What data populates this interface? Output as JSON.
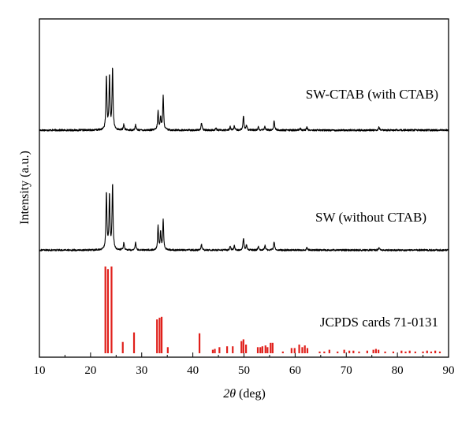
{
  "chart_data": {
    "type": "line",
    "xlabel_symbol": "2θ",
    "xlabel_unit": "(deg)",
    "ylabel": "Intensity (a.u.)",
    "xlim": [
      10,
      90
    ],
    "x_ticks": [
      "10",
      "20",
      "30",
      "40",
      "50",
      "60",
      "70",
      "80",
      "90"
    ],
    "grid": false,
    "colors": {
      "xrd_lines": "#000000",
      "reference_bars": "#e0201b",
      "axes": "#000000"
    },
    "series": [
      {
        "name": "SW-CTAB (with CTAB)",
        "style": "line",
        "baseline": 0.02,
        "noise": 0.012,
        "peaks": [
          [
            23.1,
            0.72
          ],
          [
            23.7,
            0.7
          ],
          [
            24.3,
            0.82
          ],
          [
            26.5,
            0.08
          ],
          [
            28.8,
            0.07
          ],
          [
            33.2,
            0.25
          ],
          [
            33.7,
            0.17
          ],
          [
            34.2,
            0.45
          ],
          [
            41.7,
            0.1
          ],
          [
            44.5,
            0.03
          ],
          [
            47.3,
            0.05
          ],
          [
            48.1,
            0.05
          ],
          [
            49.9,
            0.19
          ],
          [
            50.5,
            0.07
          ],
          [
            52.8,
            0.04
          ],
          [
            54.1,
            0.05
          ],
          [
            55.9,
            0.13
          ],
          [
            61.0,
            0.03
          ],
          [
            62.3,
            0.04
          ],
          [
            76.4,
            0.04
          ]
        ]
      },
      {
        "name": "SW (without CTAB)",
        "style": "line",
        "baseline": 0.02,
        "noise": 0.012,
        "peaks": [
          [
            23.1,
            0.8
          ],
          [
            23.7,
            0.76
          ],
          [
            24.3,
            0.92
          ],
          [
            26.5,
            0.1
          ],
          [
            28.8,
            0.1
          ],
          [
            33.2,
            0.33
          ],
          [
            33.7,
            0.24
          ],
          [
            34.2,
            0.42
          ],
          [
            41.7,
            0.08
          ],
          [
            47.3,
            0.06
          ],
          [
            48.1,
            0.06
          ],
          [
            49.9,
            0.17
          ],
          [
            50.5,
            0.08
          ],
          [
            52.8,
            0.05
          ],
          [
            54.1,
            0.07
          ],
          [
            55.9,
            0.12
          ],
          [
            62.3,
            0.04
          ],
          [
            76.4,
            0.03
          ]
        ]
      },
      {
        "name": "JCPDS cards 71-0131",
        "style": "stick",
        "sticks": [
          [
            22.9,
            1.0
          ],
          [
            23.4,
            0.97
          ],
          [
            24.1,
            1.0
          ],
          [
            26.3,
            0.13
          ],
          [
            28.5,
            0.24
          ],
          [
            33.0,
            0.39
          ],
          [
            33.5,
            0.41
          ],
          [
            33.9,
            0.42
          ],
          [
            35.1,
            0.07
          ],
          [
            41.3,
            0.23
          ],
          [
            43.9,
            0.04
          ],
          [
            44.3,
            0.05
          ],
          [
            45.2,
            0.07
          ],
          [
            46.7,
            0.08
          ],
          [
            47.8,
            0.08
          ],
          [
            49.5,
            0.14
          ],
          [
            49.9,
            0.16
          ],
          [
            50.4,
            0.1
          ],
          [
            52.7,
            0.07
          ],
          [
            53.2,
            0.07
          ],
          [
            53.6,
            0.08
          ],
          [
            54.2,
            0.09
          ],
          [
            54.6,
            0.07
          ],
          [
            55.2,
            0.12
          ],
          [
            55.6,
            0.12
          ],
          [
            57.6,
            0.02
          ],
          [
            59.3,
            0.06
          ],
          [
            59.9,
            0.06
          ],
          [
            60.8,
            0.1
          ],
          [
            61.4,
            0.07
          ],
          [
            61.9,
            0.09
          ],
          [
            62.4,
            0.06
          ],
          [
            64.8,
            0.02
          ],
          [
            65.7,
            0.02
          ],
          [
            66.7,
            0.04
          ],
          [
            68.3,
            0.02
          ],
          [
            69.6,
            0.04
          ],
          [
            70.6,
            0.03
          ],
          [
            71.4,
            0.03
          ],
          [
            72.5,
            0.02
          ],
          [
            74.1,
            0.03
          ],
          [
            75.3,
            0.04
          ],
          [
            75.8,
            0.05
          ],
          [
            76.3,
            0.04
          ],
          [
            77.6,
            0.02
          ],
          [
            79.2,
            0.02
          ],
          [
            80.8,
            0.03
          ],
          [
            81.6,
            0.02
          ],
          [
            82.4,
            0.03
          ],
          [
            83.5,
            0.02
          ],
          [
            85.0,
            0.02
          ],
          [
            85.8,
            0.03
          ],
          [
            86.6,
            0.02
          ],
          [
            87.4,
            0.03
          ],
          [
            88.3,
            0.02
          ]
        ]
      }
    ]
  }
}
